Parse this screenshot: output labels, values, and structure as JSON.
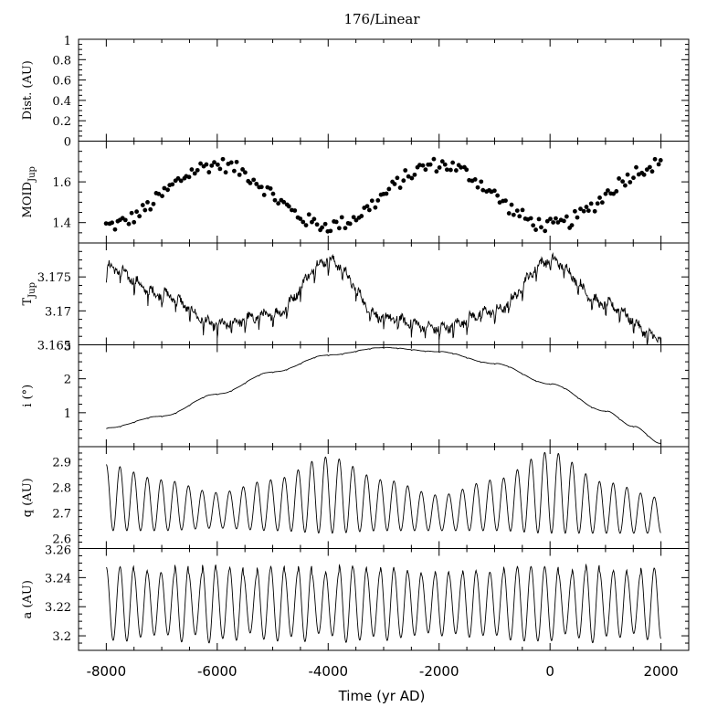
{
  "title": "176/Linear",
  "x_axis": {
    "label": "Time (yr AD)",
    "range": [
      -8500,
      2500
    ],
    "ticks": [
      -8000,
      -6000,
      -4000,
      -2000,
      0,
      2000
    ],
    "tick_labels": [
      "-8000",
      "-6000",
      "-4000",
      "-2000",
      "0",
      "2000"
    ],
    "minor_step": 500
  },
  "chart_data": [
    {
      "id": "dist",
      "type": "line",
      "ylabel": "Dist. (AU)",
      "ylim": [
        0,
        1
      ],
      "yticks": [
        0,
        0.2,
        0.4,
        0.6,
        0.8,
        1
      ],
      "ytick_labels": [
        "0",
        "0.2",
        "0.4",
        "0.6",
        "0.8",
        "1"
      ],
      "series": []
    },
    {
      "id": "moid",
      "type": "scatter",
      "ylabel_main": "MOID",
      "ylabel_sub": "Jup",
      "ylim": [
        1.3,
        1.8
      ],
      "yticks": [
        1.4,
        1.6
      ],
      "ytick_labels": [
        "1.4",
        "1.6"
      ],
      "series": [
        {
          "mode": "sine",
          "x_start": -8000,
          "x_end": 2000,
          "x_step": 50,
          "mean": 1.535,
          "amplitude": 0.15,
          "period": 4000,
          "peak_at": -6000,
          "noise": 0.035
        }
      ]
    },
    {
      "id": "tjup",
      "type": "line",
      "ylabel_main": "T",
      "ylabel_sub": "Jup",
      "ylim": [
        3.165,
        3.18
      ],
      "yticks": [
        3.165,
        3.17,
        3.175
      ],
      "ytick_labels": [
        "3.165",
        "3.17",
        "3.175"
      ],
      "series": [
        {
          "x": [
            -8000,
            -7000,
            -6000,
            -5000,
            -4000,
            -3000,
            -2000,
            -1000,
            0,
            1000,
            2000
          ],
          "y": [
            3.1765,
            3.1725,
            3.168,
            3.1695,
            3.1775,
            3.169,
            3.1675,
            3.17,
            3.1775,
            3.171,
            3.166
          ],
          "ripple_period": 250,
          "ripple_amp": 0.0018,
          "noise": 0.0006
        }
      ]
    },
    {
      "id": "incl",
      "type": "line",
      "ylabel": "i (°)",
      "ylim": [
        0,
        3
      ],
      "yticks": [
        1,
        2,
        3
      ],
      "ytick_labels": [
        "1",
        "2",
        "3"
      ],
      "series": [
        {
          "x": [
            -8000,
            -7000,
            -6000,
            -5000,
            -4000,
            -3000,
            -2000,
            -1000,
            0,
            1000,
            1500,
            2000
          ],
          "y": [
            0.55,
            0.9,
            1.55,
            2.2,
            2.7,
            2.92,
            2.8,
            2.45,
            1.85,
            1.05,
            0.6,
            0.1
          ],
          "ripple_period": 250,
          "ripple_amp": 0.02
        }
      ]
    },
    {
      "id": "q",
      "type": "line",
      "ylabel": "q (AU)",
      "ylim": [
        2.56,
        2.96
      ],
      "yticks": [
        2.6,
        2.7,
        2.8,
        2.9
      ],
      "ytick_labels": [
        "2.6",
        "2.7",
        "2.8",
        "2.9"
      ],
      "series": [
        {
          "x_start": -8000,
          "x_end": 2000,
          "osc_period": 247,
          "envelope_x": [
            -8000,
            -7000,
            -6000,
            -5000,
            -4000,
            -3000,
            -2000,
            -1000,
            0,
            1000,
            2000
          ],
          "envelope_mid": [
            2.76,
            2.73,
            2.71,
            2.73,
            2.77,
            2.73,
            2.7,
            2.73,
            2.78,
            2.72,
            2.69
          ],
          "envelope_amp": [
            0.13,
            0.1,
            0.07,
            0.1,
            0.15,
            0.1,
            0.07,
            0.1,
            0.16,
            0.1,
            0.07
          ]
        }
      ]
    },
    {
      "id": "a",
      "type": "line",
      "ylabel": "a (AU)",
      "ylim": [
        3.19,
        3.26
      ],
      "yticks": [
        3.2,
        3.22,
        3.24,
        3.26
      ],
      "ytick_labels": [
        "3.2",
        "3.22",
        "3.24",
        "3.26"
      ],
      "series": [
        {
          "x_start": -8000,
          "x_end": 2000,
          "osc_period": 247,
          "mid": 3.222,
          "amplitude": 0.022,
          "amp_jitter": 0.007
        }
      ]
    }
  ]
}
